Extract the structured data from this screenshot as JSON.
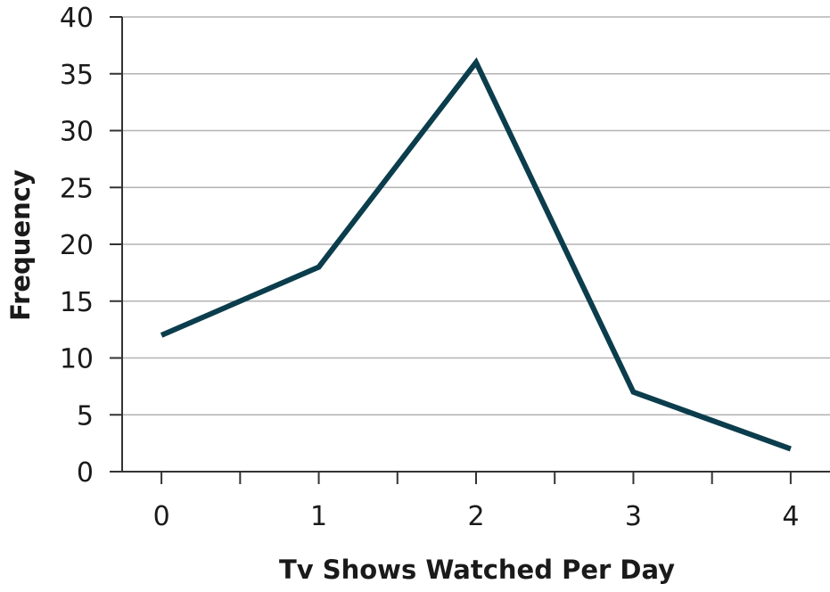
{
  "chart_data": {
    "type": "line",
    "title": "",
    "xlabel": "Tv Shows Watched Per Day",
    "ylabel": "Frequency",
    "x": [
      0,
      1,
      2,
      3,
      4
    ],
    "series": [
      {
        "values": [
          12,
          18,
          36,
          7,
          2
        ]
      }
    ],
    "xlim": [
      -0.25,
      4.25
    ],
    "ylim": [
      0,
      40
    ],
    "xticks": [
      0,
      1,
      2,
      3,
      4
    ],
    "xtick_labels": [
      "0",
      "1",
      "2",
      "3",
      "4"
    ],
    "yticks": [
      0,
      5,
      10,
      15,
      20,
      25,
      30,
      35,
      40
    ],
    "ytick_labels": [
      "0",
      "5",
      "10",
      "15",
      "20",
      "25",
      "30",
      "35",
      "40"
    ],
    "grid": "horizontal",
    "legend": "none",
    "colors": {
      "line": "#0b3d4c",
      "grid": "#b3b3b3",
      "axis": "#333333"
    }
  }
}
